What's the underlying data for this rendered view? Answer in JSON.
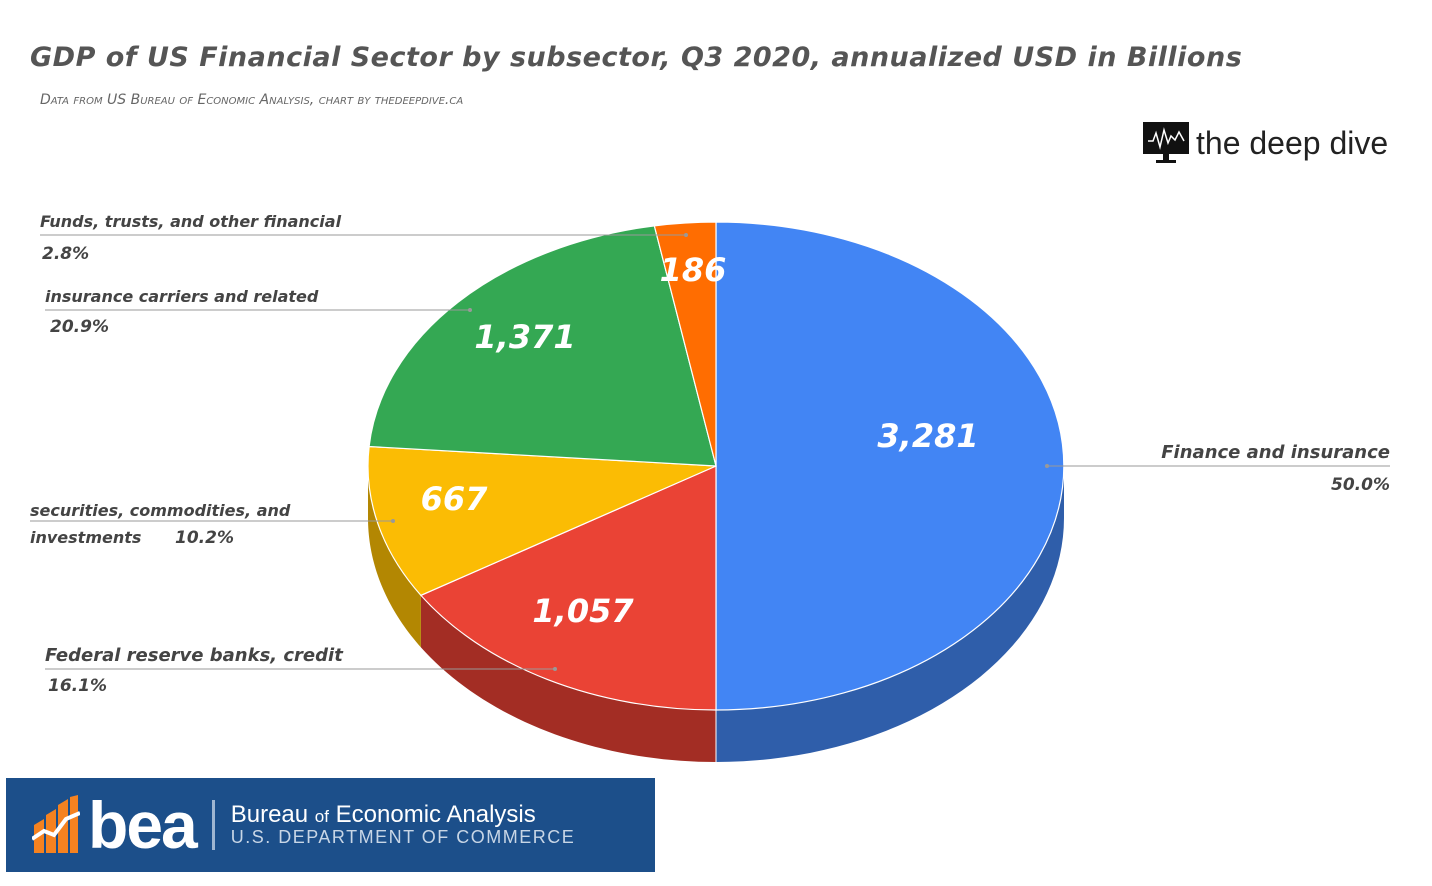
{
  "header": {
    "title": "GDP of US Financial Sector by subsector, Q3 2020, annualized USD in Billions",
    "subtitle": "Data from US Bureau of Economic Analysis, chart by thedeepdive.ca"
  },
  "brand": {
    "name": "the deep dive",
    "icon": "monitor-chart-icon"
  },
  "bea": {
    "abbr": "bea",
    "name_pre": "Bureau ",
    "name_of": "of",
    "name_post": " Economic Analysis",
    "dept": "U.S. DEPARTMENT OF COMMERCE"
  },
  "chart_data": {
    "type": "pie",
    "title": "GDP of US Financial Sector by subsector, Q3 2020, annualized USD in Billions",
    "style": "3d",
    "slices": [
      {
        "label": "Finance and insurance",
        "value": 3281,
        "value_label": "3,281",
        "percent": "50.0%",
        "color": "#4285f4",
        "side_color": "#2f5eaa"
      },
      {
        "label": "Federal reserve banks, credit",
        "value": 1057,
        "value_label": "1,057",
        "percent": "16.1%",
        "color": "#ea4335",
        "side_color": "#a32d24"
      },
      {
        "label": "securities, commodities, and investments",
        "value": 667,
        "value_label": "667",
        "percent": "10.2%",
        "color": "#fbbc04",
        "side_color": "#b38702"
      },
      {
        "label": "insurance carriers and related",
        "value": 1371,
        "value_label": "1,371",
        "percent": "20.9%",
        "color": "#34a853",
        "side_color": "#257a3b"
      },
      {
        "label": "Funds, trusts, and other financial",
        "value": 186,
        "value_label": "186",
        "percent": "2.8%",
        "color": "#ff6d01",
        "side_color": "#b34c00"
      }
    ]
  }
}
